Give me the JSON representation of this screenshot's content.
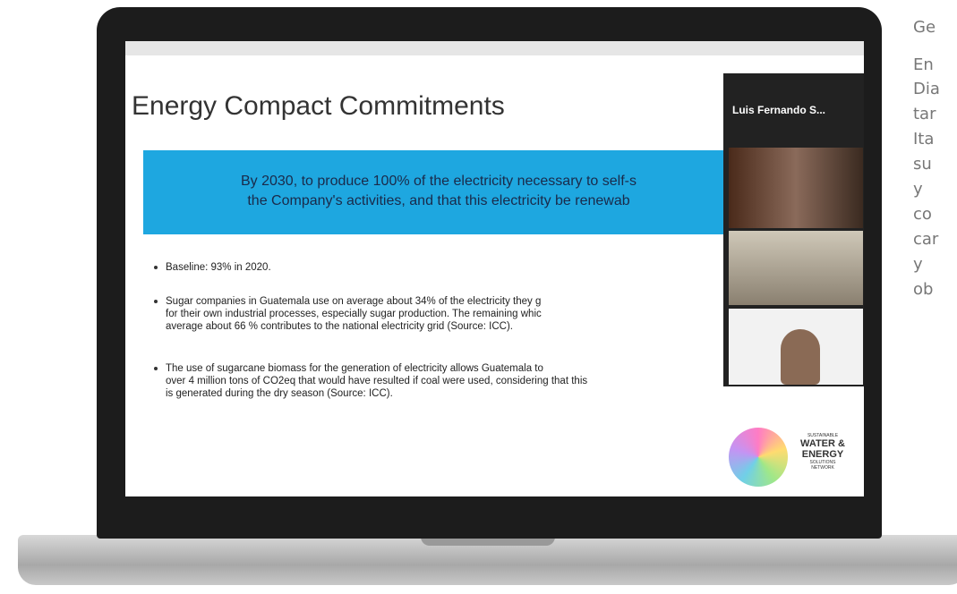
{
  "slide": {
    "title": "Energy Compact Commitments",
    "highlight": [
      "By 2030, to produce 100% of the electricity necessary to self-s",
      "the Company's activities, and that this electricity be renewab"
    ],
    "bullets": [
      [
        "Baseline: 93% in 2020."
      ],
      [
        "Sugar companies in Guatemala use on average about 34% of the electricity they g",
        "for their own industrial processes, especially sugar production. The remaining whic",
        "average about 66 % contributes to the national electricity grid (Source: ICC)."
      ],
      [
        "The use of sugarcane biomass for the generation of electricity allows Guatemala to",
        "over 4 million tons of CO2eq that would have resulted if coal were used, considering that this",
        "is generated during the dry season (Source: ICC)."
      ]
    ],
    "logo": [
      "SUSTAINABLE",
      "WATER &",
      "ENERGY",
      "SOLUTIONS",
      "NETWORK"
    ]
  },
  "video_panel": {
    "header": "Luis Fernando S..."
  },
  "side_text": [
    "Ge",
    "En",
    "Dia",
    "tar",
    "Ita",
    "su",
    "y",
    "co",
    "car",
    "y",
    "ob"
  ]
}
